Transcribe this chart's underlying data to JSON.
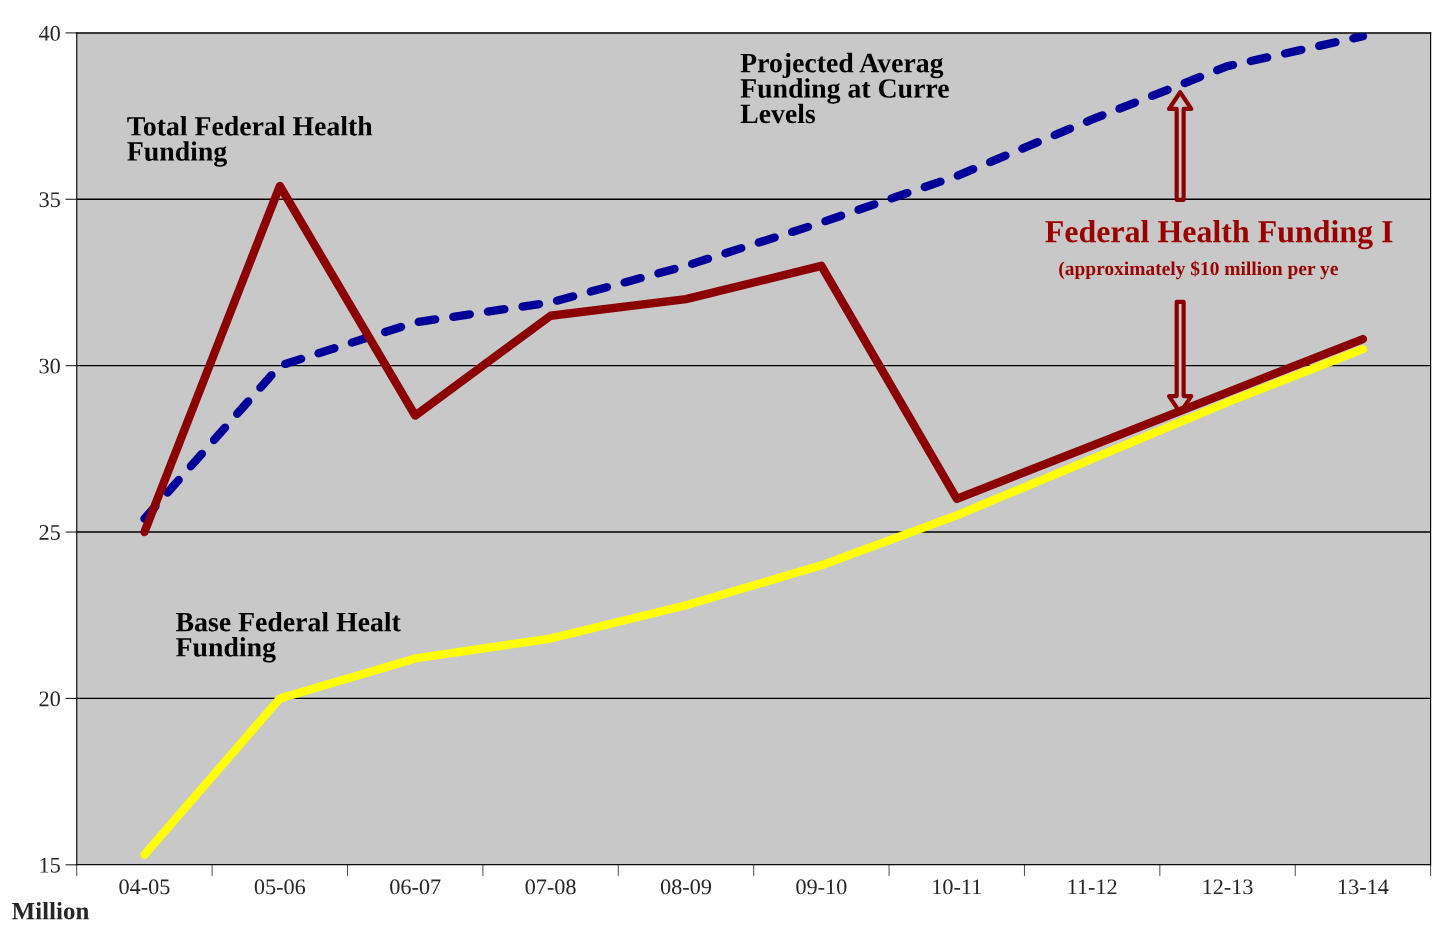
{
  "chart_data": {
    "type": "line",
    "ylabel": "Million",
    "categories": [
      "04-05",
      "05-06",
      "06-07",
      "07-08",
      "08-09",
      "09-10",
      "10-11",
      "11-12",
      "12-13",
      "13-14"
    ],
    "series": [
      {
        "name": "Total Federal Health Funding",
        "color": "#8b0000",
        "line_style": "solid",
        "values": [
          25.0,
          35.4,
          28.5,
          31.5,
          32.0,
          33.0,
          26.0,
          27.6,
          29.2,
          30.8
        ]
      },
      {
        "name": "Projected Averag Funding at Curre Levels",
        "color": "#000099",
        "line_style": "dashed",
        "values": [
          25.4,
          30.0,
          31.3,
          31.9,
          33.0,
          34.3,
          35.7,
          37.4,
          39.0,
          39.9
        ]
      },
      {
        "name": "Base Federal Healt Funding",
        "color": "#ffff00",
        "line_style": "solid",
        "values": [
          15.3,
          20.0,
          21.2,
          21.8,
          22.8,
          24.0,
          25.5,
          27.2,
          28.9,
          30.5
        ]
      }
    ],
    "annotations": [
      "Federal Health Funding I",
      "(approximately $10 million per ye"
    ],
    "ylim": [
      15,
      40
    ],
    "yticks": [
      15,
      20,
      25,
      30,
      35,
      40
    ],
    "grid": "y",
    "legend": false,
    "marker": "none"
  }
}
